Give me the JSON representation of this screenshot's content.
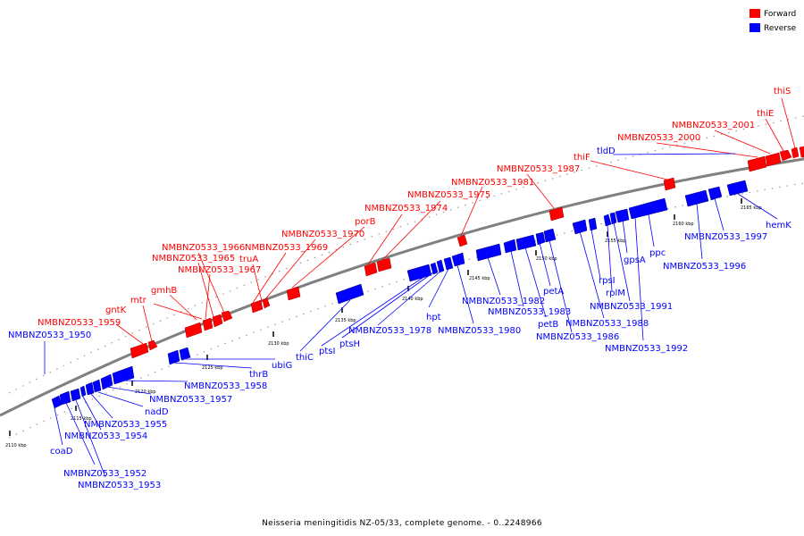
{
  "colors": {
    "forward": "#ff0000",
    "reverse": "#0000ff",
    "backbone": "#808080"
  },
  "legend": {
    "forward_label": "Forward",
    "reverse_label": "Reverse"
  },
  "caption": "Neisseria meningitidis NZ-05/33, complete genome. - 0..2248966",
  "tick_labels": [
    "2110 kbp",
    "2115 kbp",
    "2120 kbp",
    "2125 kbp",
    "2130 kbp",
    "2135 kbp",
    "2140 kbp",
    "2145 kbp",
    "2150 kbp",
    "2155 kbp",
    "2160 kbp",
    "2165 kbp"
  ],
  "forward_genes": [
    "NMBNZ0533_1959",
    "mtr",
    "gntK",
    "gmhB",
    "NMBNZ0533_1966",
    "NMBNZ0533_1965",
    "NMBNZ0533_1967",
    "truA",
    "NMBNZ0533_1969",
    "NMBNZ0533_1970",
    "porB",
    "NMBNZ0533_1974",
    "NMBNZ0533_1975",
    "NMBNZ0533_1981",
    "NMBNZ0533_1987",
    "thiF",
    "NMBNZ0533_2000",
    "NMBNZ0533_2001",
    "thiE",
    "thiS"
  ],
  "reverse_genes": [
    "NMBNZ0533_1950",
    "coaD",
    "NMBNZ0533_1952",
    "NMBNZ0533_1953",
    "NMBNZ0533_1954",
    "NMBNZ0533_1955",
    "nadD",
    "NMBNZ0533_1957",
    "NMBNZ0533_1958",
    "thrB",
    "ubiG",
    "thiC",
    "ptsI",
    "ptsH",
    "NMBNZ0533_1978",
    "hpt",
    "NMBNZ0533_1980",
    "NMBNZ0533_1982",
    "NMBNZ0533_1983",
    "petB",
    "petA",
    "NMBNZ0533_1986",
    "NMBNZ0533_1988",
    "rpsI",
    "rplM",
    "NMBNZ0533_1991",
    "gpsA",
    "NMBNZ0533_1992",
    "ppc",
    "NMBNZ0533_1996",
    "NMBNZ0533_1997",
    "hemK",
    "tldD"
  ]
}
